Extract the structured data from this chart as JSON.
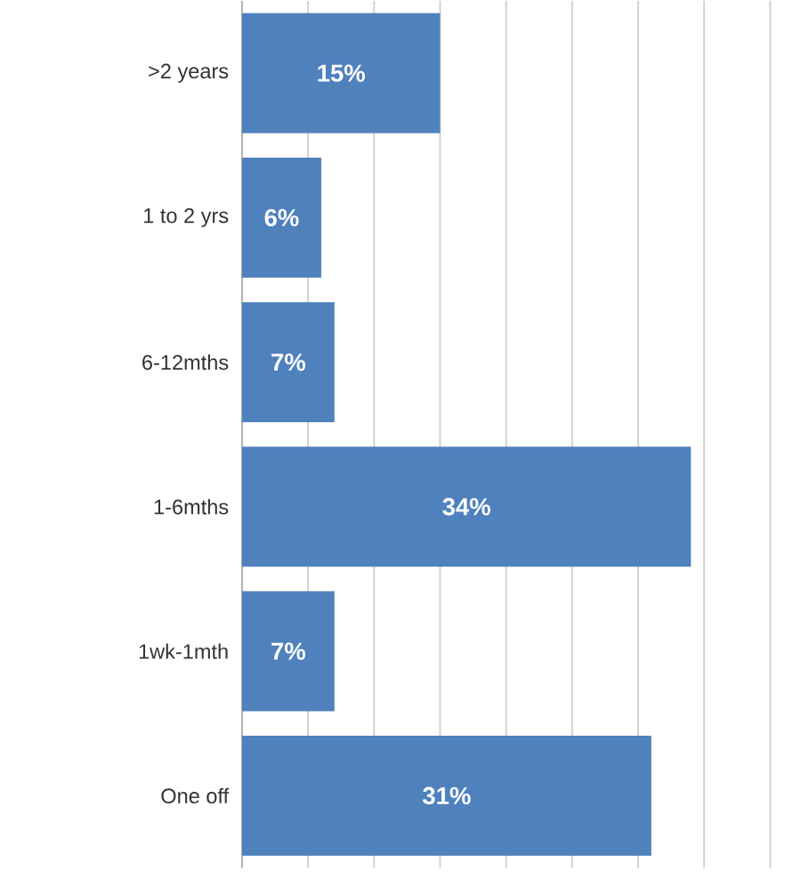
{
  "chart_data": {
    "type": "bar",
    "orientation": "horizontal",
    "categories": [
      ">2 years",
      "1 to 2 yrs",
      "6-12mths",
      "1-6mths",
      "1wk-1mth",
      "One off"
    ],
    "values": [
      15,
      6,
      7,
      34,
      7,
      31
    ],
    "value_labels": [
      "15%",
      "6%",
      "7%",
      "34%",
      "7%",
      "31%"
    ],
    "color": "#4f81bd",
    "grid": "x",
    "tick_labels": "y"
  }
}
